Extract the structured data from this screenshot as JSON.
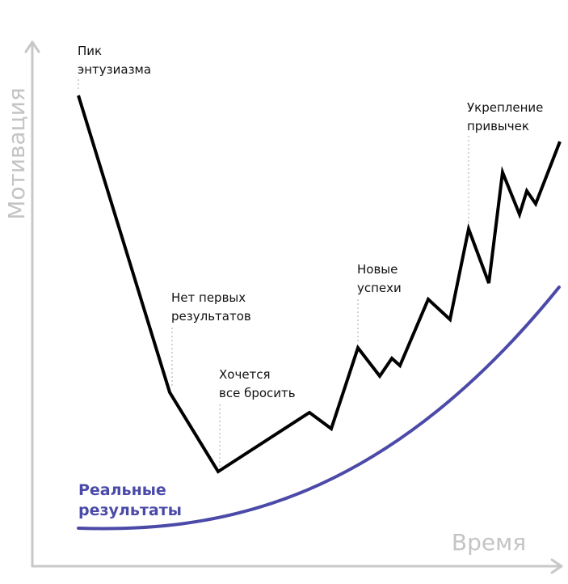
{
  "axes": {
    "y_label": "Мотивация",
    "x_label": "Время"
  },
  "annotations": [
    {
      "lines": [
        "Пик",
        "энтузиазма"
      ]
    },
    {
      "lines": [
        "Нет первых",
        "результатов"
      ]
    },
    {
      "lines": [
        "Хочется",
        "все бросить"
      ]
    },
    {
      "lines": [
        "Новые",
        "успехи"
      ]
    },
    {
      "lines": [
        "Укрепление",
        "привычек"
      ]
    }
  ],
  "results_label": {
    "lines": [
      "Реальные",
      "результаты"
    ]
  }
}
